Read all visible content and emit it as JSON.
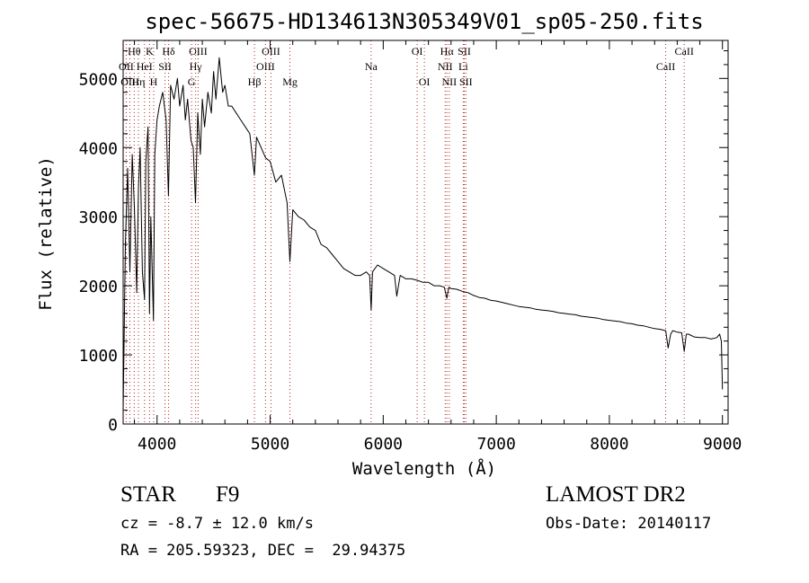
{
  "chart_data": {
    "type": "line",
    "title": "spec-56675-HD134613N305349V01_sp05-250.fits",
    "xlabel": "Wavelength (Å)",
    "ylabel": "Flux (relative)",
    "xlim": [
      3700,
      9050
    ],
    "ylim": [
      0,
      5550
    ],
    "xticks": [
      4000,
      5000,
      6000,
      7000,
      8000,
      9000
    ],
    "yticks": [
      0,
      1000,
      2000,
      3000,
      4000,
      5000
    ],
    "grid": false,
    "line_color": "#000000",
    "marker_color": "#b22222",
    "spectrum": {
      "name": "",
      "points": [
        [
          3700,
          200
        ],
        [
          3720,
          2600
        ],
        [
          3740,
          3700
        ],
        [
          3760,
          2200
        ],
        [
          3780,
          3900
        ],
        [
          3800,
          3100
        ],
        [
          3820,
          1900
        ],
        [
          3835,
          3400
        ],
        [
          3850,
          4000
        ],
        [
          3870,
          2200
        ],
        [
          3889,
          1800
        ],
        [
          3900,
          3800
        ],
        [
          3920,
          4300
        ],
        [
          3933,
          1600
        ],
        [
          3945,
          3000
        ],
        [
          3968,
          1500
        ],
        [
          3980,
          3900
        ],
        [
          4000,
          4400
        ],
        [
          4020,
          4600
        ],
        [
          4050,
          4800
        ],
        [
          4080,
          4400
        ],
        [
          4101,
          3300
        ],
        [
          4120,
          4900
        ],
        [
          4150,
          4700
        ],
        [
          4180,
          5000
        ],
        [
          4200,
          4600
        ],
        [
          4230,
          4900
        ],
        [
          4250,
          4400
        ],
        [
          4270,
          4700
        ],
        [
          4300,
          4100
        ],
        [
          4320,
          4000
        ],
        [
          4340,
          3200
        ],
        [
          4360,
          4500
        ],
        [
          4383,
          3900
        ],
        [
          4400,
          4700
        ],
        [
          4420,
          4300
        ],
        [
          4450,
          4800
        ],
        [
          4480,
          4500
        ],
        [
          4500,
          5100
        ],
        [
          4520,
          4700
        ],
        [
          4550,
          5300
        ],
        [
          4580,
          4800
        ],
        [
          4600,
          4900
        ],
        [
          4630,
          4600
        ],
        [
          4660,
          4600
        ],
        [
          4700,
          4500
        ],
        [
          4740,
          4400
        ],
        [
          4780,
          4300
        ],
        [
          4820,
          4200
        ],
        [
          4861,
          3600
        ],
        [
          4880,
          4150
        ],
        [
          4920,
          4000
        ],
        [
          4960,
          3850
        ],
        [
          5000,
          3800
        ],
        [
          5050,
          3500
        ],
        [
          5100,
          3600
        ],
        [
          5150,
          3200
        ],
        [
          5175,
          2350
        ],
        [
          5200,
          3100
        ],
        [
          5250,
          3000
        ],
        [
          5300,
          2950
        ],
        [
          5350,
          2850
        ],
        [
          5400,
          2800
        ],
        [
          5450,
          2600
        ],
        [
          5500,
          2550
        ],
        [
          5550,
          2450
        ],
        [
          5600,
          2350
        ],
        [
          5650,
          2250
        ],
        [
          5700,
          2200
        ],
        [
          5750,
          2150
        ],
        [
          5800,
          2150
        ],
        [
          5850,
          2200
        ],
        [
          5880,
          2150
        ],
        [
          5893,
          1650
        ],
        [
          5905,
          2200
        ],
        [
          5950,
          2300
        ],
        [
          6000,
          2250
        ],
        [
          6050,
          2200
        ],
        [
          6100,
          2150
        ],
        [
          6120,
          1850
        ],
        [
          6150,
          2150
        ],
        [
          6200,
          2100
        ],
        [
          6250,
          2100
        ],
        [
          6300,
          2080
        ],
        [
          6350,
          2050
        ],
        [
          6400,
          2050
        ],
        [
          6450,
          2000
        ],
        [
          6500,
          2000
        ],
        [
          6540,
          1980
        ],
        [
          6563,
          1820
        ],
        [
          6580,
          1980
        ],
        [
          6600,
          1960
        ],
        [
          6650,
          1950
        ],
        [
          6700,
          1920
        ],
        [
          6750,
          1900
        ],
        [
          6800,
          1860
        ],
        [
          6850,
          1830
        ],
        [
          6900,
          1820
        ],
        [
          6950,
          1790
        ],
        [
          7000,
          1780
        ],
        [
          7050,
          1760
        ],
        [
          7100,
          1740
        ],
        [
          7150,
          1720
        ],
        [
          7200,
          1700
        ],
        [
          7250,
          1690
        ],
        [
          7300,
          1680
        ],
        [
          7350,
          1660
        ],
        [
          7400,
          1650
        ],
        [
          7450,
          1640
        ],
        [
          7500,
          1630
        ],
        [
          7550,
          1610
        ],
        [
          7600,
          1600
        ],
        [
          7650,
          1590
        ],
        [
          7700,
          1580
        ],
        [
          7750,
          1560
        ],
        [
          7800,
          1550
        ],
        [
          7850,
          1540
        ],
        [
          7900,
          1530
        ],
        [
          7950,
          1510
        ],
        [
          8000,
          1500
        ],
        [
          8050,
          1490
        ],
        [
          8100,
          1480
        ],
        [
          8150,
          1460
        ],
        [
          8200,
          1450
        ],
        [
          8250,
          1430
        ],
        [
          8300,
          1420
        ],
        [
          8350,
          1400
        ],
        [
          8400,
          1380
        ],
        [
          8450,
          1370
        ],
        [
          8498,
          1350
        ],
        [
          8520,
          1100
        ],
        [
          8542,
          1300
        ],
        [
          8560,
          1350
        ],
        [
          8600,
          1330
        ],
        [
          8640,
          1320
        ],
        [
          8662,
          1050
        ],
        [
          8680,
          1300
        ],
        [
          8700,
          1300
        ],
        [
          8750,
          1260
        ],
        [
          8800,
          1250
        ],
        [
          8850,
          1250
        ],
        [
          8900,
          1230
        ],
        [
          8950,
          1250
        ],
        [
          8975,
          1300
        ],
        [
          8990,
          1200
        ],
        [
          9000,
          500
        ]
      ]
    },
    "lines": [
      {
        "label": "Hθ",
        "wave": 3798,
        "row": 1
      },
      {
        "label": "OII",
        "wave": 3727,
        "row": 2
      },
      {
        "label": "Hη",
        "wave": 3835,
        "row": 3
      },
      {
        "label": "OIII",
        "wave": 3760,
        "row": 3
      },
      {
        "label": "K",
        "wave": 3934,
        "row": 1
      },
      {
        "label": "HeI",
        "wave": 3889,
        "row": 2
      },
      {
        "label": "SII",
        "wave": 4070,
        "row": 2
      },
      {
        "label": "H",
        "wave": 3970,
        "row": 3
      },
      {
        "label": "Hδ",
        "wave": 4102,
        "row": 1
      },
      {
        "label": "OIII",
        "wave": 4363,
        "row": 1
      },
      {
        "label": "Hγ",
        "wave": 4341,
        "row": 2
      },
      {
        "label": "G",
        "wave": 4305,
        "row": 3
      },
      {
        "label": "OIII",
        "wave": 5007,
        "row": 1
      },
      {
        "label": "OIII",
        "wave": 4959,
        "row": 2
      },
      {
        "label": "Hβ",
        "wave": 4861,
        "row": 3
      },
      {
        "label": "Mg",
        "wave": 5175,
        "row": 3
      },
      {
        "label": "Na",
        "wave": 5893,
        "row": 2
      },
      {
        "label": "OI",
        "wave": 6300,
        "row": 1
      },
      {
        "label": "OI",
        "wave": 6364,
        "row": 3
      },
      {
        "label": "Hα",
        "wave": 6563,
        "row": 1
      },
      {
        "label": "NII",
        "wave": 6548,
        "row": 2
      },
      {
        "label": "NII",
        "wave": 6584,
        "row": 3
      },
      {
        "label": "SII",
        "wave": 6717,
        "row": 1
      },
      {
        "label": "Li",
        "wave": 6708,
        "row": 2
      },
      {
        "label": "SII",
        "wave": 6731,
        "row": 3
      },
      {
        "label": "CaII",
        "wave": 8662,
        "row": 1
      },
      {
        "label": "CaII",
        "wave": 8498,
        "row": 2
      }
    ]
  },
  "info": {
    "class_label": "STAR",
    "subclass": "F9",
    "survey": "LAMOST DR2",
    "cz": "cz = -8.7 ± 12.0 km/s",
    "obs_date": "Obs-Date: 20140117",
    "coords": "RA = 205.59323, DEC =  29.94375"
  }
}
